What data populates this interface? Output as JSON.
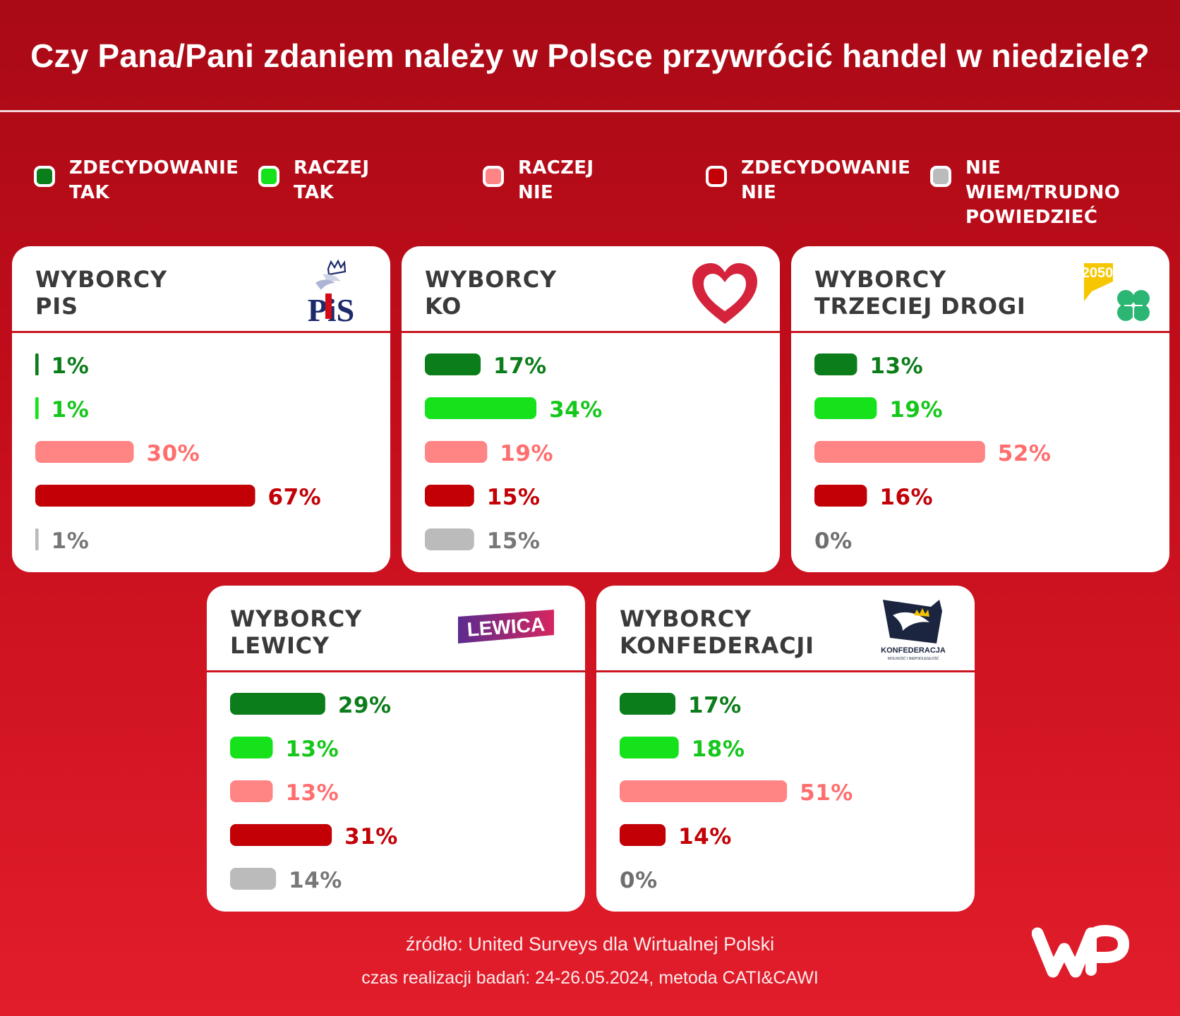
{
  "title": "Czy Pana/Pani zdaniem należy w Polsce przywrócić handel w niedziele?",
  "colors": {
    "zdecydowanie_tak": "#0b7d1a",
    "raczej_tak": "#16e21c",
    "raczej_nie": "#ff8484",
    "zdecydowanie_nie": "#c20006",
    "nie_wiem": "#bbbbbb",
    "divider": "#c9151f"
  },
  "legend": [
    {
      "label": "ZDECYDOWANIE\nTAK",
      "color": "#0b7d1a"
    },
    {
      "label": "RACZEJ\nTAK",
      "color": "#16e21c"
    },
    {
      "label": "RACZEJ\nNIE",
      "color": "#ff8484"
    },
    {
      "label": "ZDECYDOWANIE\nNIE",
      "color": "#c20006"
    },
    {
      "label": "NIE WIEM/TRUDNO\nPOWIEDZIEĆ",
      "color": "#bbbbbb"
    }
  ],
  "cards": [
    {
      "title": "WYBORCY\nPIS",
      "logo_text": "PiS",
      "logo_icon": "pis-crowned-eagle-logo"
    },
    {
      "title": "WYBORCY\nKO",
      "logo_icon": "ko-heart-logo"
    },
    {
      "title": "WYBORCY\nTRZECIEJ DROGI",
      "logo_text": "2050",
      "logo_icon": "trzecia-droga-clover-logo"
    },
    {
      "title": "WYBORCY\nLEWICY",
      "logo_text": "LEWICA",
      "logo_icon": "lewica-logo"
    },
    {
      "title": "WYBORCY\nKONFEDERACJI",
      "logo_text": "KONFEDERACJA",
      "logo_subtext": "WOLNOŚĆ I NIEPODLEGŁOŚĆ",
      "logo_icon": "konfederacja-eagle-logo"
    }
  ],
  "chart_data": [
    {
      "type": "bar",
      "title": "WYBORCY PIS",
      "categories": [
        "ZDECYDOWANIE TAK",
        "RACZEJ TAK",
        "RACZEJ NIE",
        "ZDECYDOWANIE NIE",
        "NIE WIEM/TRUDNO POWIEDZIEĆ"
      ],
      "values": [
        1,
        1,
        30,
        67,
        1
      ],
      "labels": [
        "1%",
        "1%",
        "30%",
        "67%",
        "1%"
      ],
      "unit": "%"
    },
    {
      "type": "bar",
      "title": "WYBORCY KO",
      "categories": [
        "ZDECYDOWANIE TAK",
        "RACZEJ TAK",
        "RACZEJ NIE",
        "ZDECYDOWANIE NIE",
        "NIE WIEM/TRUDNO POWIEDZIEĆ"
      ],
      "values": [
        17,
        34,
        19,
        15,
        15
      ],
      "labels": [
        "17%",
        "34%",
        "19%",
        "15%",
        "15%"
      ],
      "unit": "%"
    },
    {
      "type": "bar",
      "title": "WYBORCY TRZECIEJ DROGI",
      "categories": [
        "ZDECYDOWANIE TAK",
        "RACZEJ TAK",
        "RACZEJ NIE",
        "ZDECYDOWANIE NIE",
        "NIE WIEM/TRUDNO POWIEDZIEĆ"
      ],
      "values": [
        13,
        19,
        52,
        16,
        0
      ],
      "labels": [
        "13%",
        "19%",
        "52%",
        "16%",
        "0%"
      ],
      "unit": "%"
    },
    {
      "type": "bar",
      "title": "WYBORCY LEWICY",
      "categories": [
        "ZDECYDOWANIE TAK",
        "RACZEJ TAK",
        "RACZEJ NIE",
        "ZDECYDOWANIE NIE",
        "NIE WIEM/TRUDNO POWIEDZIEĆ"
      ],
      "values": [
        29,
        13,
        13,
        31,
        14
      ],
      "labels": [
        "29%",
        "13%",
        "13%",
        "31%",
        "14%"
      ],
      "unit": "%"
    },
    {
      "type": "bar",
      "title": "WYBORCY KONFEDERACJI",
      "categories": [
        "ZDECYDOWANIE TAK",
        "RACZEJ TAK",
        "RACZEJ NIE",
        "ZDECYDOWANIE NIE",
        "NIE WIEM/TRUDNO POWIEDZIEĆ"
      ],
      "values": [
        17,
        18,
        51,
        14,
        0
      ],
      "labels": [
        "17%",
        "18%",
        "51%",
        "14%",
        "0%"
      ],
      "unit": "%"
    }
  ],
  "source_line1": "źródło: United Surveys dla Wirtualnej Polski",
  "source_line2": "czas realizacji badań: 24-26.05.2024, metoda CATI&CAWI",
  "brand_logo": "wp-logo"
}
